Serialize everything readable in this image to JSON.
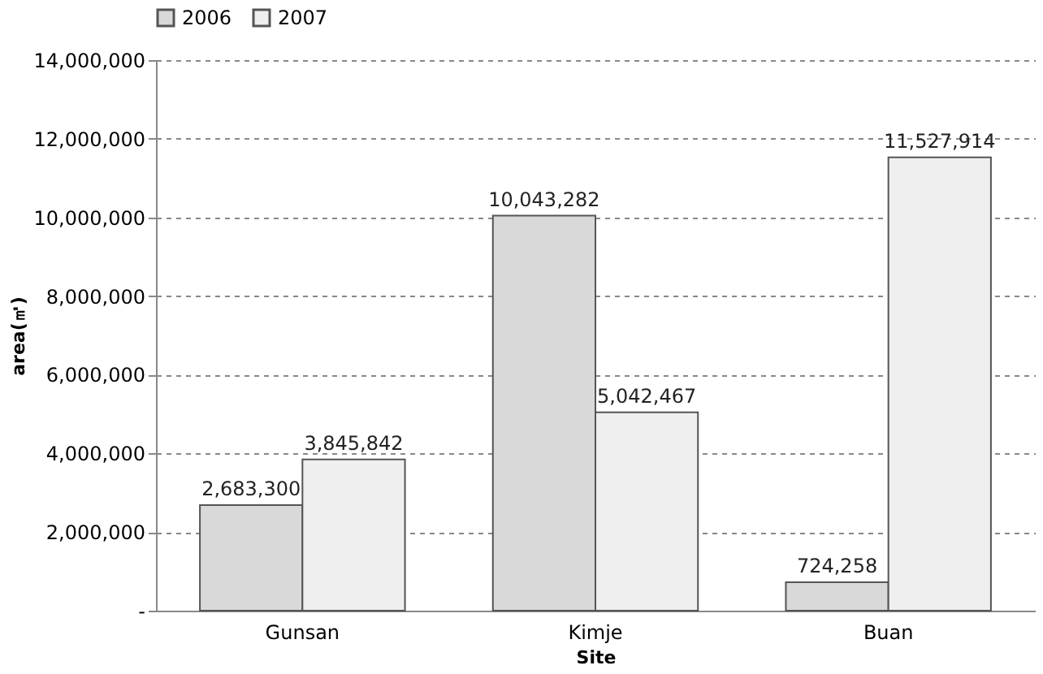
{
  "chart_data": {
    "type": "bar",
    "xlabel": "Site",
    "ylabel": "area(㎡)",
    "categories": [
      "Gunsan",
      "Kimje",
      "Buan"
    ],
    "series": [
      {
        "name": "2006",
        "color": "#d9d9d9",
        "values": [
          2683300,
          10043282,
          724258
        ],
        "value_labels": [
          "2,683,300",
          "10,043,282",
          "724,258"
        ]
      },
      {
        "name": "2007",
        "color": "#efefef",
        "values": [
          3845842,
          5042467,
          11527914
        ],
        "value_labels": [
          "3,845,842",
          "5,042,467",
          "11,527,914"
        ]
      }
    ],
    "ylim": [
      0,
      14000000
    ],
    "yticks": [
      {
        "value": 0,
        "label": "-"
      },
      {
        "value": 2000000,
        "label": "2,000,000"
      },
      {
        "value": 4000000,
        "label": "4,000,000"
      },
      {
        "value": 6000000,
        "label": "6,000,000"
      },
      {
        "value": 8000000,
        "label": "8,000,000"
      },
      {
        "value": 10000000,
        "label": "10,000,000"
      },
      {
        "value": 12000000,
        "label": "12,000,000"
      },
      {
        "value": 14000000,
        "label": "14,000,000"
      }
    ],
    "grid": "y",
    "legend": "top"
  }
}
